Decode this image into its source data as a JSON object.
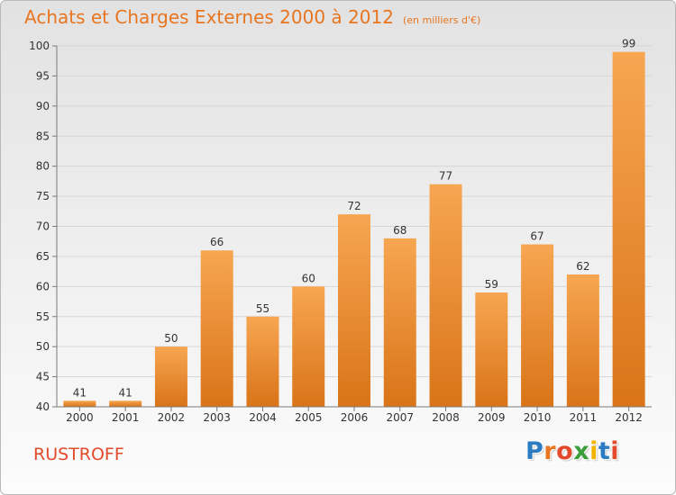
{
  "header": {
    "title": "Achats et Charges Externes 2000 à 2012",
    "subtitle": "(en milliers d'€)"
  },
  "footer": {
    "commune": "RUSTROFF",
    "logo_text": "Proxiti",
    "logo_colors": [
      "#2b7bc3",
      "#e8751f",
      "#e24a2b",
      "#3a9e3a",
      "#f2b300",
      "#2b7bc3",
      "#e24a2b"
    ]
  },
  "colors": {
    "bar_light": "#f7a651",
    "bar_dark": "#d97418",
    "axis": "#7a7a7a",
    "grid": "#d6d6d6",
    "text": "#333333"
  },
  "chart_data": {
    "type": "bar",
    "title": "Achats et Charges Externes 2000 à 2012",
    "subtitle": "(en milliers d'€)",
    "categories": [
      "2000",
      "2001",
      "2002",
      "2003",
      "2004",
      "2005",
      "2006",
      "2007",
      "2008",
      "2009",
      "2010",
      "2011",
      "2012"
    ],
    "values": [
      41,
      41,
      50,
      66,
      55,
      60,
      72,
      68,
      77,
      59,
      67,
      62,
      99
    ],
    "data_labels": [
      "41",
      "41",
      "50",
      "66",
      "55",
      "60",
      "72",
      "68",
      "77",
      "59",
      "67",
      "62",
      "99"
    ],
    "ylim": [
      40,
      100
    ],
    "yticks": [
      40,
      45,
      50,
      55,
      60,
      65,
      70,
      75,
      80,
      85,
      90,
      95,
      100
    ],
    "grid": true,
    "xlabel": "",
    "ylabel": ""
  }
}
